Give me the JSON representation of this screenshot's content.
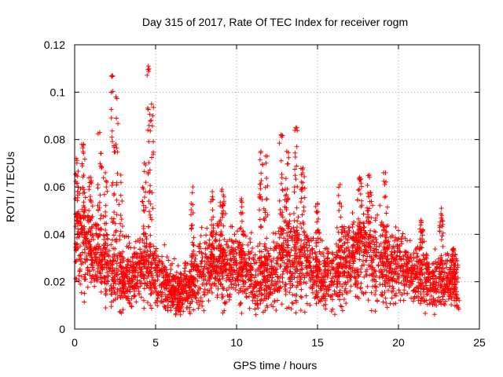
{
  "chart_data": {
    "type": "scatter",
    "title": "Day 315 of 2017, Rate Of TEC Index for receiver rogm",
    "xlabel": "GPS time / hours",
    "ylabel": "ROTI / TECUs",
    "xlim": [
      0,
      25
    ],
    "ylim": [
      0,
      0.12
    ],
    "x_ticks": [
      "0",
      "5",
      "10",
      "15",
      "20",
      "25"
    ],
    "y_ticks": [
      "0",
      "0.02",
      "0.04",
      "0.06",
      "0.08",
      "0.1",
      "0.12"
    ],
    "grid": true,
    "marker": "plus",
    "color": "#ff0000",
    "series": [
      {
        "envelope": {
          "x": [
            0,
            0.25,
            0.5,
            1.0,
            1.5,
            2.0,
            2.5,
            3.0,
            3.5,
            4.0,
            4.5,
            5.0,
            5.5,
            6.0,
            6.5,
            7.0,
            7.5,
            8.0,
            8.5,
            9.0,
            9.5,
            10.0,
            10.5,
            11.0,
            11.5,
            12.0,
            12.5,
            13.0,
            13.5,
            14.0,
            14.5,
            15.0,
            15.5,
            16.0,
            16.5,
            17.0,
            17.5,
            18.0,
            18.5,
            19.0,
            19.5,
            20.0,
            20.5,
            21.0,
            21.5,
            22.0,
            22.5,
            23.0,
            23.5
          ],
          "center": [
            0.04,
            0.042,
            0.036,
            0.032,
            0.028,
            0.026,
            0.022,
            0.02,
            0.022,
            0.026,
            0.026,
            0.022,
            0.02,
            0.016,
            0.016,
            0.017,
            0.022,
            0.026,
            0.028,
            0.028,
            0.026,
            0.025,
            0.024,
            0.022,
            0.02,
            0.022,
            0.026,
            0.028,
            0.03,
            0.03,
            0.026,
            0.024,
            0.022,
            0.024,
            0.026,
            0.03,
            0.032,
            0.034,
            0.03,
            0.028,
            0.026,
            0.026,
            0.024,
            0.022,
            0.022,
            0.02,
            0.02,
            0.02,
            0.02
          ],
          "spread": [
            0.016,
            0.02,
            0.018,
            0.015,
            0.013,
            0.012,
            0.012,
            0.011,
            0.011,
            0.012,
            0.012,
            0.011,
            0.01,
            0.008,
            0.008,
            0.008,
            0.01,
            0.012,
            0.013,
            0.013,
            0.012,
            0.012,
            0.012,
            0.012,
            0.012,
            0.013,
            0.014,
            0.015,
            0.015,
            0.015,
            0.013,
            0.012,
            0.011,
            0.012,
            0.013,
            0.014,
            0.015,
            0.016,
            0.015,
            0.014,
            0.013,
            0.013,
            0.012,
            0.011,
            0.011,
            0.01,
            0.01,
            0.01,
            0.01
          ]
        },
        "peaks": [
          {
            "x": 0.1,
            "y": 0.072
          },
          {
            "x": 0.55,
            "y": 0.078
          },
          {
            "x": 1.0,
            "y": 0.064
          },
          {
            "x": 1.55,
            "y": 0.083
          },
          {
            "x": 1.9,
            "y": 0.066
          },
          {
            "x": 2.35,
            "y": 0.107
          },
          {
            "x": 2.55,
            "y": 0.098
          },
          {
            "x": 2.85,
            "y": 0.065
          },
          {
            "x": 4.3,
            "y": 0.07
          },
          {
            "x": 4.55,
            "y": 0.111
          },
          {
            "x": 4.75,
            "y": 0.095
          },
          {
            "x": 7.3,
            "y": 0.06
          },
          {
            "x": 8.5,
            "y": 0.058
          },
          {
            "x": 9.1,
            "y": 0.059
          },
          {
            "x": 10.3,
            "y": 0.055
          },
          {
            "x": 11.5,
            "y": 0.075
          },
          {
            "x": 11.8,
            "y": 0.073
          },
          {
            "x": 12.75,
            "y": 0.082
          },
          {
            "x": 13.1,
            "y": 0.075
          },
          {
            "x": 13.65,
            "y": 0.085
          },
          {
            "x": 14.1,
            "y": 0.068
          },
          {
            "x": 15.0,
            "y": 0.053
          },
          {
            "x": 16.4,
            "y": 0.061
          },
          {
            "x": 17.6,
            "y": 0.064
          },
          {
            "x": 18.2,
            "y": 0.065
          },
          {
            "x": 19.2,
            "y": 0.066
          },
          {
            "x": 21.4,
            "y": 0.046
          },
          {
            "x": 22.65,
            "y": 0.051
          },
          {
            "x": 23.4,
            "y": 0.034
          }
        ]
      }
    ]
  }
}
